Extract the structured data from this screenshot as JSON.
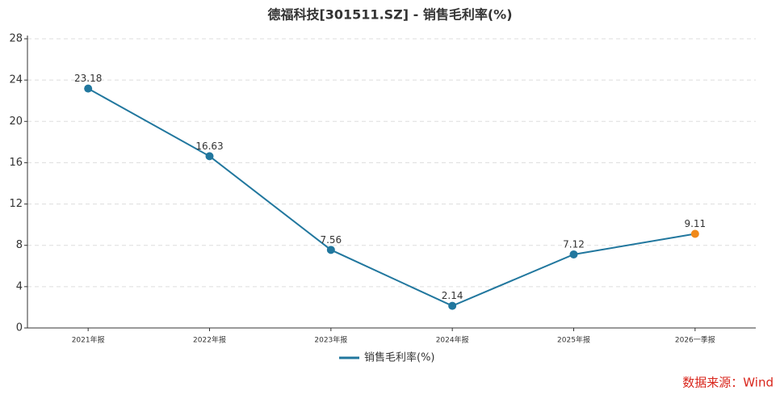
{
  "chart_data": {
    "type": "line",
    "title": "德福科技[301511.SZ] - 销售毛利率(%)",
    "categories": [
      "2021年报",
      "2022年报",
      "2023年报",
      "2024年报",
      "2025年报",
      "2026一季报"
    ],
    "series": [
      {
        "name": "销售毛利率(%)",
        "color": "#21779e",
        "values": [
          23.18,
          16.63,
          7.56,
          2.14,
          7.12,
          9.11
        ],
        "point_colors": [
          "#21779e",
          "#21779e",
          "#21779e",
          "#21779e",
          "#21779e",
          "#f0891a"
        ]
      }
    ],
    "ylim": [
      0,
      28
    ],
    "yticks": [
      0,
      4,
      8,
      12,
      16,
      20,
      24,
      28
    ],
    "grid": true,
    "legend": "bottom",
    "source": "数据来源：Wind"
  }
}
